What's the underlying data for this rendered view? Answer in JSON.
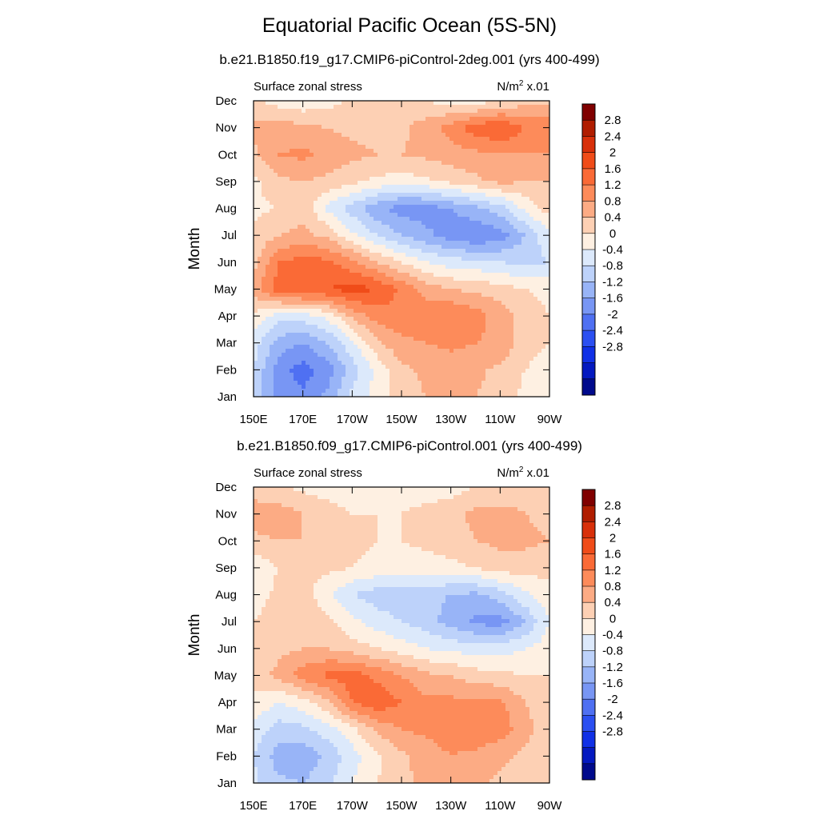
{
  "page_title": "Equatorial Pacific Ocean (5S-5N)",
  "colorbar": {
    "levels": [
      "2.8",
      "2.4",
      "2",
      "1.6",
      "1.2",
      "0.8",
      "0.4",
      "0",
      "-0.4",
      "-0.8",
      "-1.2",
      "-1.6",
      "-2",
      "-2.4",
      "-2.8"
    ],
    "colors": [
      "#800000",
      "#b01d00",
      "#d8300a",
      "#f04c19",
      "#fa6a36",
      "#fd8b5a",
      "#fcab84",
      "#fdd0b4",
      "#fef0e2",
      "#dce9fb",
      "#bdd2fa",
      "#98b4f7",
      "#7896f4",
      "#4f70f2",
      "#2b4ff1",
      "#1030e6",
      "#0419c0",
      "#000a8c"
    ]
  },
  "chart_data": [
    {
      "type": "heatmap",
      "title": "b.e21.B1850.f19_g17.CMIP6-piControl-2deg.001 (yrs 400-499)",
      "left_label": "Surface zonal stress",
      "units_label": "N/m",
      "units_exp": "2",
      "units_scale": " x.01",
      "ylabel": "Month",
      "xlabel": "",
      "x_ticks": [
        "150E",
        "170E",
        "170W",
        "150W",
        "130W",
        "110W",
        "90W"
      ],
      "y_ticks": [
        "Jan",
        "Feb",
        "Mar",
        "Apr",
        "May",
        "Jun",
        "Jul",
        "Aug",
        "Sep",
        "Oct",
        "Nov",
        "Dec"
      ],
      "x_domain": [
        150,
        270
      ],
      "y_domain": [
        1,
        12
      ],
      "z_range": [
        -3.2,
        3.2
      ],
      "grid_x": [
        150,
        160,
        170,
        180,
        190,
        200,
        210,
        220,
        230,
        240,
        250,
        260,
        270
      ],
      "grid_y": [
        1,
        2,
        3,
        4,
        5,
        6,
        7,
        8,
        9,
        10,
        11,
        12
      ],
      "values": [
        [
          -0.9,
          -1.7,
          -1.9,
          -1.5,
          -0.7,
          -0.2,
          0.2,
          0.4,
          0.5,
          0.4,
          0.2,
          -0.1,
          -0.3
        ],
        [
          -0.8,
          -1.8,
          -2.2,
          -1.8,
          -1.0,
          -0.3,
          0.3,
          0.5,
          0.6,
          0.5,
          0.3,
          0.0,
          -0.2
        ],
        [
          -0.6,
          -1.4,
          -1.6,
          -1.2,
          -0.5,
          0.3,
          0.7,
          0.8,
          0.9,
          0.8,
          0.7,
          0.2,
          0.0
        ],
        [
          -0.1,
          -0.6,
          -0.6,
          -0.3,
          0.5,
          1.0,
          1.1,
          1.1,
          1.2,
          1.0,
          0.6,
          0.2,
          0.0
        ],
        [
          0.6,
          1.4,
          1.6,
          1.6,
          1.8,
          1.6,
          1.1,
          0.6,
          0.4,
          0.3,
          0.2,
          0.0,
          -0.1
        ],
        [
          0.2,
          1.2,
          1.4,
          1.3,
          0.9,
          0.4,
          0.0,
          -0.4,
          -0.6,
          -0.7,
          -0.8,
          -0.9,
          -0.8
        ],
        [
          0.1,
          0.4,
          0.5,
          0.3,
          -0.3,
          -0.8,
          -1.2,
          -1.5,
          -1.8,
          -2.0,
          -1.8,
          -1.2,
          -0.5
        ],
        [
          -0.1,
          0.0,
          0.3,
          -0.5,
          -1.0,
          -1.5,
          -1.8,
          -1.8,
          -1.6,
          -1.3,
          -1.0,
          -0.3,
          0.2
        ],
        [
          -0.1,
          0.3,
          0.4,
          0.3,
          0.1,
          -0.1,
          -0.2,
          -0.1,
          0.1,
          0.3,
          0.5,
          0.4,
          0.4
        ],
        [
          0.3,
          0.8,
          0.9,
          0.7,
          0.5,
          0.4,
          0.4,
          0.5,
          0.6,
          0.7,
          0.8,
          0.8,
          0.8
        ],
        [
          0.5,
          0.6,
          0.5,
          0.4,
          0.3,
          0.3,
          0.3,
          0.6,
          1.0,
          1.4,
          1.6,
          1.2,
          1.1
        ],
        [
          0.1,
          -0.2,
          -0.3,
          -0.2,
          0.1,
          0.2,
          0.2,
          0.0,
          -0.2,
          -0.2,
          0.0,
          0.2,
          0.3
        ]
      ]
    },
    {
      "type": "heatmap",
      "title": "b.e21.B1850.f09_g17.CMIP6-piControl.001 (yrs 400-499)",
      "left_label": "Surface zonal stress",
      "units_label": "N/m",
      "units_exp": "2",
      "units_scale": " x.01",
      "ylabel": "Month",
      "xlabel": "",
      "x_ticks": [
        "150E",
        "170E",
        "170W",
        "150W",
        "130W",
        "110W",
        "90W"
      ],
      "y_ticks": [
        "Jan",
        "Feb",
        "Mar",
        "Apr",
        "May",
        "Jun",
        "Jul",
        "Aug",
        "Sep",
        "Oct",
        "Nov",
        "Dec"
      ],
      "x_domain": [
        150,
        270
      ],
      "y_domain": [
        1,
        12
      ],
      "z_range": [
        -3.2,
        3.2
      ],
      "grid_x": [
        150,
        160,
        170,
        180,
        190,
        200,
        210,
        220,
        230,
        240,
        250,
        260,
        270
      ],
      "grid_y": [
        1,
        2,
        3,
        4,
        5,
        6,
        7,
        8,
        9,
        10,
        11,
        12
      ],
      "values": [
        [
          -0.7,
          -1.1,
          -1.2,
          -0.9,
          -0.4,
          0.0,
          0.3,
          0.5,
          0.6,
          0.5,
          0.3,
          0.1,
          0.0
        ],
        [
          -0.8,
          -1.4,
          -1.5,
          -1.1,
          -0.6,
          -0.1,
          0.3,
          0.6,
          0.8,
          0.7,
          0.5,
          0.3,
          0.0
        ],
        [
          -0.5,
          -1.0,
          -0.9,
          -0.6,
          -0.1,
          0.5,
          0.8,
          0.9,
          1.0,
          1.1,
          1.0,
          0.6,
          0.1
        ],
        [
          -0.1,
          -0.4,
          -0.2,
          0.3,
          1.2,
          1.5,
          1.2,
          0.9,
          0.9,
          0.9,
          0.9,
          0.4,
          0.1
        ],
        [
          0.2,
          0.5,
          1.0,
          1.3,
          1.4,
          1.1,
          0.8,
          0.5,
          0.4,
          0.2,
          0.1,
          0.0,
          0.0
        ],
        [
          0.1,
          0.3,
          0.4,
          0.4,
          0.2,
          0.0,
          -0.2,
          -0.4,
          -0.5,
          -0.6,
          -0.6,
          -0.4,
          -0.2
        ],
        [
          0.0,
          0.2,
          0.3,
          0.1,
          -0.3,
          -0.6,
          -0.8,
          -1.0,
          -1.4,
          -1.7,
          -1.8,
          -1.2,
          -0.4
        ],
        [
          -0.2,
          0.1,
          0.2,
          -0.3,
          -0.8,
          -1.0,
          -1.1,
          -1.1,
          -1.2,
          -1.3,
          -1.0,
          -0.5,
          -0.1
        ],
        [
          -0.3,
          0.0,
          0.1,
          0.1,
          0.0,
          -0.1,
          -0.2,
          -0.2,
          -0.1,
          0.0,
          0.2,
          0.2,
          0.1
        ],
        [
          0.3,
          0.4,
          0.4,
          0.3,
          0.1,
          0.0,
          0.0,
          0.1,
          0.2,
          0.4,
          0.5,
          0.5,
          0.4
        ],
        [
          0.6,
          0.6,
          0.4,
          0.2,
          0.0,
          0.0,
          0.0,
          0.2,
          0.3,
          0.5,
          0.5,
          0.4,
          0.3
        ],
        [
          0.2,
          0.1,
          -0.1,
          -0.2,
          -0.3,
          -0.3,
          -0.3,
          -0.3,
          -0.2,
          0.0,
          0.2,
          0.3,
          0.2
        ]
      ]
    }
  ]
}
